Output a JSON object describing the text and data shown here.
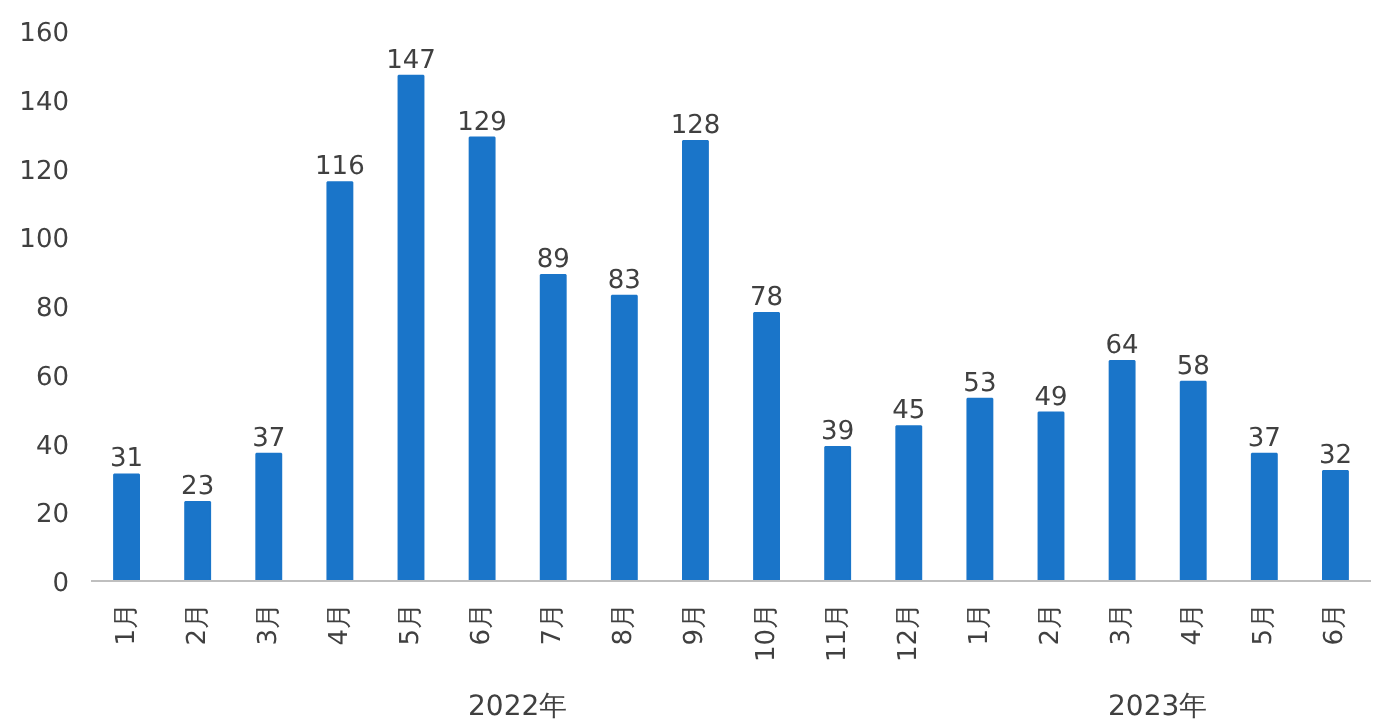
{
  "chart_data": {
    "type": "bar",
    "categories": [
      "1月",
      "2月",
      "3月",
      "4月",
      "5月",
      "6月",
      "7月",
      "8月",
      "9月",
      "10月",
      "11月",
      "12月",
      "1月",
      "2月",
      "3月",
      "4月",
      "5月",
      "6月"
    ],
    "values": [
      31,
      23,
      37,
      116,
      147,
      129,
      89,
      83,
      128,
      78,
      39,
      45,
      53,
      49,
      64,
      58,
      37,
      32
    ],
    "color": "#1a75c9",
    "ylim": [
      0,
      160
    ],
    "yticks": [
      0,
      20,
      40,
      60,
      80,
      100,
      120,
      140,
      160
    ],
    "data_labels": true,
    "grid": false,
    "annotations": [
      "2022年",
      "2023年"
    ]
  }
}
